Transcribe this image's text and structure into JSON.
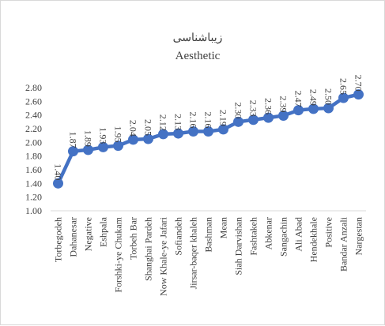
{
  "chart_data": {
    "type": "line",
    "title": "زیباشناسی",
    "subtitle": "Aesthetic",
    "categories": [
      "Torbegodeh",
      "Dahanesar",
      "Negative",
      "Eshpala",
      "Forshki-ye Chukam",
      "Torbeh Bar",
      "Shanghai Pardeh",
      "Now Khale-ye Jafari",
      "Sofiandeh",
      "Jirsar-baqer khaleh",
      "Bashman",
      "Mean",
      "Siah Darvishan",
      "Fashtakeh",
      "Abkenar",
      "Sangachin",
      "Ali Abad",
      "Hendekhale",
      "Positive",
      "Bandar Anzali",
      "Nargestan"
    ],
    "values": [
      1.4,
      1.87,
      1.89,
      1.93,
      1.95,
      2.04,
      2.05,
      2.12,
      2.13,
      2.16,
      2.16,
      2.19,
      2.3,
      2.33,
      2.36,
      2.39,
      2.47,
      2.49,
      2.5,
      2.65,
      2.7
    ],
    "value_labels": [
      "1.40",
      "1.87",
      "1.89",
      "1.93",
      "1.95",
      "2.04",
      "2.05",
      "2.12",
      "2.13",
      "2.16",
      "2.16",
      "2.19",
      "2.30",
      "2.33",
      "2.36",
      "2.39",
      "2.47",
      "2.49",
      "2.50",
      "2.65",
      "2.70"
    ],
    "y_ticks": [
      "1.00",
      "1.20",
      "1.40",
      "1.60",
      "1.80",
      "2.00",
      "2.20",
      "2.40",
      "2.60",
      "2.80"
    ],
    "ylim": [
      1.0,
      2.8
    ],
    "grid": false,
    "legend": "none",
    "xlabel": "",
    "ylabel": "",
    "colors": {
      "line": "#4472c4",
      "text": "#404040",
      "axis": "#d9d9d9"
    }
  }
}
